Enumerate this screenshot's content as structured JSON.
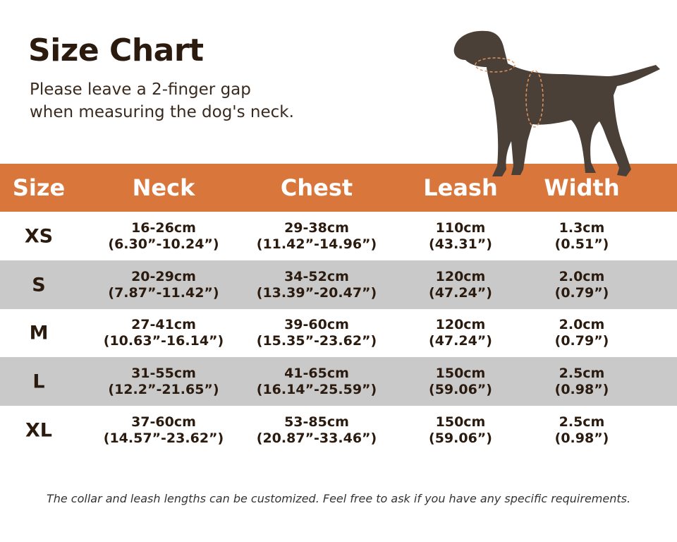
{
  "header": {
    "title": "Size Chart",
    "subtitle": [
      "Please leave a 2-finger gap",
      "when measuring the dog's neck."
    ]
  },
  "table": {
    "columns": [
      "Size",
      "Neck",
      "Chest",
      "Leash",
      "Width"
    ],
    "rows": [
      {
        "size": "XS",
        "cells": [
          [
            "16-26cm",
            "(6.30”-10.24”)"
          ],
          [
            "29-38cm",
            "(11.42”-14.96”)"
          ],
          [
            "110cm",
            "(43.31”)"
          ],
          [
            "1.3cm",
            "(0.51”)"
          ]
        ]
      },
      {
        "size": "S",
        "cells": [
          [
            "20-29cm",
            "(7.87”-11.42”)"
          ],
          [
            "34-52cm",
            "(13.39”-20.47”)"
          ],
          [
            "120cm",
            "(47.24”)"
          ],
          [
            "2.0cm",
            "(0.79”)"
          ]
        ]
      },
      {
        "size": "M",
        "cells": [
          [
            "27-41cm",
            "(10.63”-16.14”)"
          ],
          [
            "39-60cm",
            "(15.35”-23.62”)"
          ],
          [
            "120cm",
            "(47.24”)"
          ],
          [
            "2.0cm",
            "(0.79”)"
          ]
        ]
      },
      {
        "size": "L",
        "cells": [
          [
            "31-55cm",
            "(12.2”-21.65”)"
          ],
          [
            "41-65cm",
            "(16.14”-25.59”)"
          ],
          [
            "150cm",
            "(59.06”)"
          ],
          [
            "2.5cm",
            "(0.98”)"
          ]
        ]
      },
      {
        "size": "XL",
        "cells": [
          [
            "37-60cm",
            "(14.57”-23.62”)"
          ],
          [
            "53-85cm",
            "(20.87”-33.46”)"
          ],
          [
            "150cm",
            "(59.06”)"
          ],
          [
            "2.5cm",
            "(0.98”)"
          ]
        ]
      }
    ]
  },
  "footer": "The collar and leash lengths can be customized. Feel free to ask if you have any specific requirements."
}
